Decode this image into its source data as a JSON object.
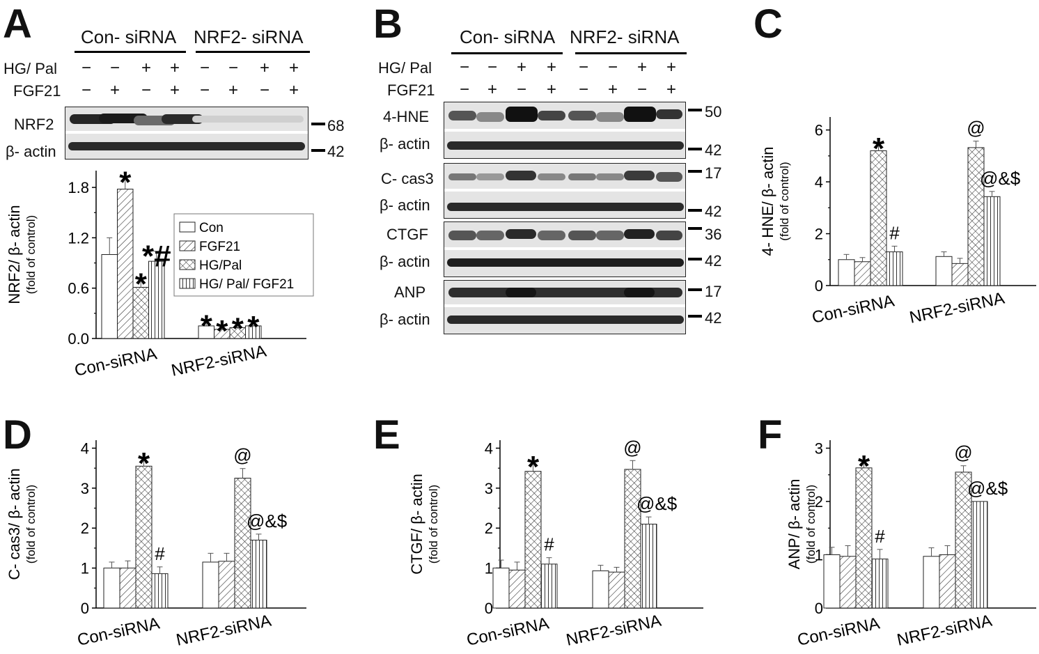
{
  "panel_letters": [
    "A",
    "B",
    "C",
    "D",
    "E",
    "F"
  ],
  "blot": {
    "groups": [
      "Con- siRNA",
      "NRF2- siRNA"
    ],
    "treatment_rows": [
      {
        "label": "HG/ Pal",
        "signs": [
          "−",
          "−",
          "+",
          "+",
          "−",
          "−",
          "+",
          "+"
        ]
      },
      {
        "label": "FGF21",
        "signs": [
          "−",
          "+",
          "−",
          "+",
          "−",
          "+",
          "−",
          "+"
        ]
      }
    ],
    "panel_a_blots": [
      {
        "label": "NRF2",
        "mw": "68"
      },
      {
        "label": "β- actin",
        "mw": "42"
      }
    ],
    "panel_b_blots": [
      {
        "label": "4-HNE",
        "mw": "50"
      },
      {
        "label": "β- actin",
        "mw": "42"
      },
      {
        "label": "C- cas3",
        "mw": "17"
      },
      {
        "label": "β- actin",
        "mw": "42"
      },
      {
        "label": "CTGF",
        "mw": "36"
      },
      {
        "label": "β- actin",
        "mw": "42"
      },
      {
        "label": "ANP",
        "mw": "17"
      },
      {
        "label": "β- actin",
        "mw": "42"
      }
    ]
  },
  "chart_data": [
    {
      "panel": "A",
      "type": "bar",
      "categories": [
        "Con-siRNA",
        "NRF2-siRNA"
      ],
      "ylabel": "NRF2/ β- actin",
      "ylabel_sub": "(fold of control)",
      "ylim": [
        0,
        2.0
      ],
      "yticks": [
        "0.0",
        "0.6",
        "1.2",
        "1.8"
      ],
      "ytick_values": [
        0,
        0.6,
        1.2,
        1.8
      ],
      "legend": {
        "placement": "right",
        "entries": [
          "Con",
          "FGF21",
          "HG/Pal",
          "HG/ Pal/ FGF21"
        ]
      },
      "series": [
        {
          "name": "Con",
          "values": [
            1.0,
            0.15
          ],
          "errors": [
            0.2,
            0.06
          ],
          "marks": [
            "",
            "*"
          ]
        },
        {
          "name": "FGF21",
          "values": [
            1.78,
            0.11
          ],
          "errors": [
            0.14,
            0.04
          ],
          "marks": [
            "*",
            "*"
          ]
        },
        {
          "name": "HG/Pal",
          "values": [
            0.61,
            0.13
          ],
          "errors": [
            0.1,
            0.05
          ],
          "marks": [
            "*",
            "*"
          ]
        },
        {
          "name": "HG/ Pal/ FGF21",
          "values": [
            0.92,
            0.15
          ],
          "errors": [
            0.12,
            0.05
          ],
          "marks": [
            "*#",
            "*"
          ]
        }
      ]
    },
    {
      "panel": "C",
      "type": "bar",
      "categories": [
        "Con-siRNA",
        "NRF2-siRNA"
      ],
      "ylabel": "4- HNE/ β- actin",
      "ylabel_sub": "(fold of control)",
      "ylim": [
        0,
        6.5
      ],
      "yticks": [
        "0",
        "2",
        "4",
        "6"
      ],
      "ytick_values": [
        0,
        2,
        4,
        6
      ],
      "series": [
        {
          "name": "Con",
          "values": [
            1.0,
            1.12
          ],
          "errors": [
            0.2,
            0.18
          ],
          "marks": [
            "",
            ""
          ]
        },
        {
          "name": "FGF21",
          "values": [
            0.92,
            0.85
          ],
          "errors": [
            0.16,
            0.2
          ],
          "marks": [
            "",
            ""
          ]
        },
        {
          "name": "HG/Pal",
          "values": [
            5.2,
            5.32
          ],
          "errors": [
            0.28,
            0.25
          ],
          "marks": [
            "*",
            "@"
          ]
        },
        {
          "name": "HG/ Pal/ FGF21",
          "values": [
            1.3,
            3.43
          ],
          "errors": [
            0.22,
            0.2
          ],
          "marks": [
            "#",
            "@&$"
          ]
        }
      ]
    },
    {
      "panel": "D",
      "type": "bar",
      "categories": [
        "Con-siRNA",
        "NRF2-siRNA"
      ],
      "ylabel": "C- cas3/ β- actin",
      "ylabel_sub": "(fold of control)",
      "ylim": [
        0,
        4.2
      ],
      "yticks": [
        "0",
        "1",
        "2",
        "3",
        "4"
      ],
      "ytick_values": [
        0,
        1,
        2,
        3,
        4
      ],
      "series": [
        {
          "name": "Con",
          "values": [
            1.0,
            1.15
          ],
          "errors": [
            0.15,
            0.22
          ],
          "marks": [
            "",
            ""
          ]
        },
        {
          "name": "FGF21",
          "values": [
            1.0,
            1.17
          ],
          "errors": [
            0.18,
            0.2
          ],
          "marks": [
            "",
            ""
          ]
        },
        {
          "name": "HG/Pal",
          "values": [
            3.55,
            3.25
          ],
          "errors": [
            0.2,
            0.24
          ],
          "marks": [
            "*",
            "@"
          ]
        },
        {
          "name": "HG/ Pal/ FGF21",
          "values": [
            0.86,
            1.7
          ],
          "errors": [
            0.17,
            0.15
          ],
          "marks": [
            "#",
            "@&$"
          ]
        }
      ]
    },
    {
      "panel": "E",
      "type": "bar",
      "categories": [
        "Con-siRNA",
        "NRF2-siRNA"
      ],
      "ylabel": "CTGF/ β- actin",
      "ylabel_sub": "(fold of control)",
      "ylim": [
        0,
        4.2
      ],
      "yticks": [
        "0",
        "1",
        "2",
        "3",
        "4"
      ],
      "ytick_values": [
        0,
        1,
        2,
        3,
        4
      ],
      "series": [
        {
          "name": "Con",
          "values": [
            1.0,
            0.93
          ],
          "errors": [
            0.2,
            0.14
          ],
          "marks": [
            "",
            ""
          ]
        },
        {
          "name": "FGF21",
          "values": [
            0.95,
            0.9
          ],
          "errors": [
            0.2,
            0.12
          ],
          "marks": [
            "",
            ""
          ]
        },
        {
          "name": "HG/Pal",
          "values": [
            3.42,
            3.47
          ],
          "errors": [
            0.24,
            0.22
          ],
          "marks": [
            "*",
            "@"
          ]
        },
        {
          "name": "HG/ Pal/ FGF21",
          "values": [
            1.1,
            2.1
          ],
          "errors": [
            0.16,
            0.18
          ],
          "marks": [
            "#",
            "@&$"
          ]
        }
      ]
    },
    {
      "panel": "F",
      "type": "bar",
      "categories": [
        "Con-siRNA",
        "NRF2-siRNA"
      ],
      "ylabel": "ANP/ β- actin",
      "ylabel_sub": "(fold of control)",
      "ylim": [
        0,
        3.15
      ],
      "yticks": [
        "0",
        "1",
        "2",
        "3"
      ],
      "ytick_values": [
        0,
        1,
        2,
        3
      ],
      "series": [
        {
          "name": "Con",
          "values": [
            1.0,
            0.97
          ],
          "errors": [
            0.14,
            0.16
          ],
          "marks": [
            "",
            ""
          ]
        },
        {
          "name": "FGF21",
          "values": [
            0.97,
            1.0
          ],
          "errors": [
            0.2,
            0.17
          ],
          "marks": [
            "",
            ""
          ]
        },
        {
          "name": "HG/Pal",
          "values": [
            2.63,
            2.55
          ],
          "errors": [
            0.13,
            0.12
          ],
          "marks": [
            "*",
            "@"
          ]
        },
        {
          "name": "HG/ Pal/ FGF21",
          "values": [
            0.92,
            2.0
          ],
          "errors": [
            0.18,
            0.0
          ],
          "marks": [
            "#",
            "@&$"
          ]
        }
      ]
    }
  ]
}
